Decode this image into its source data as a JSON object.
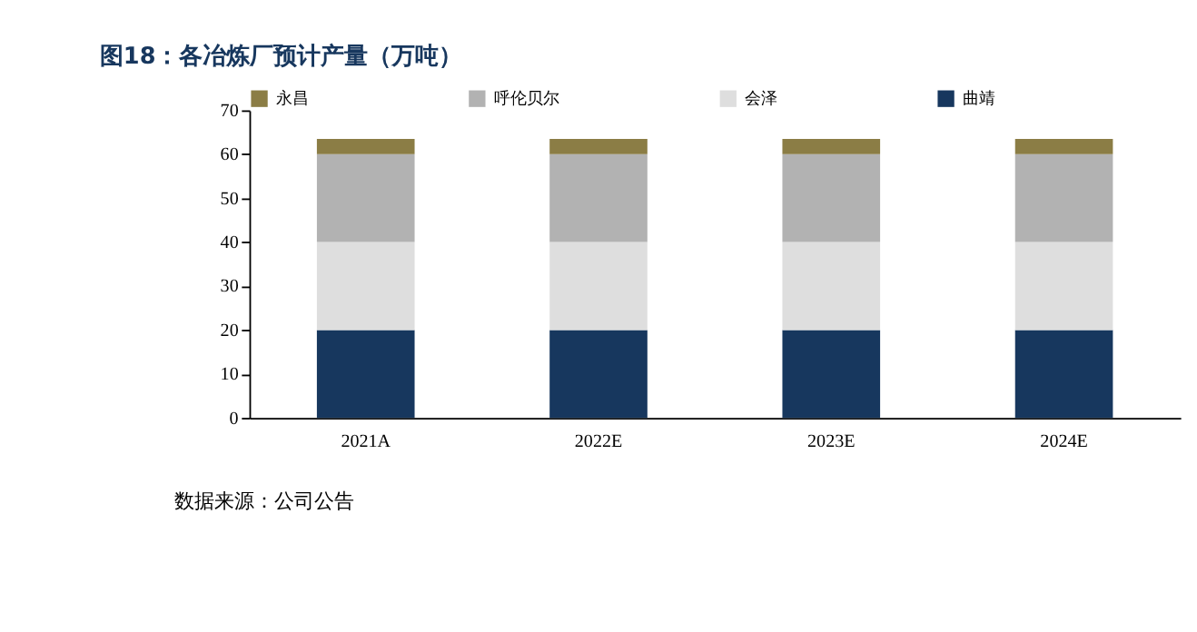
{
  "chart_data": {
    "type": "bar",
    "title": "图18：各冶炼厂预计产量（万吨）",
    "stacked": true,
    "categories": [
      "2021A",
      "2022E",
      "2023E",
      "2024E"
    ],
    "series": [
      {
        "name": "曲靖",
        "color": "#17375e",
        "values": [
          20,
          20,
          20,
          20
        ]
      },
      {
        "name": "会泽",
        "color": "#dedede",
        "values": [
          20,
          20,
          20,
          20
        ]
      },
      {
        "name": "呼伦贝尔",
        "color": "#b2b2b2",
        "values": [
          20,
          20,
          20,
          20
        ]
      },
      {
        "name": "永昌",
        "color": "#8b7d45",
        "values": [
          3.5,
          3.5,
          3.5,
          3.5
        ]
      }
    ],
    "ylim": [
      0,
      70
    ],
    "yticks": [
      0,
      10,
      20,
      30,
      40,
      50,
      60,
      70
    ],
    "legend": "top",
    "grid": false,
    "annotations": [
      "数据来源：公司公告"
    ]
  }
}
